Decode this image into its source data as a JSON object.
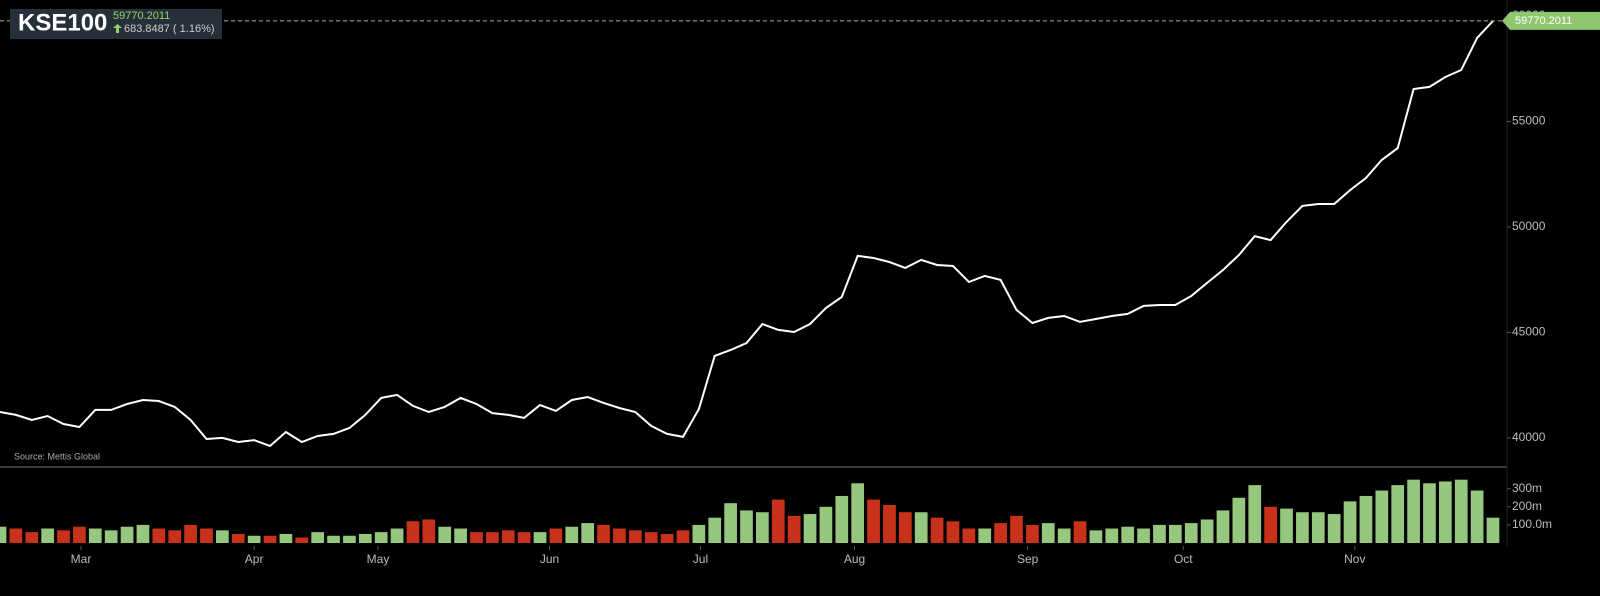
{
  "header": {
    "symbol": "KSE100",
    "last": "59770.2011",
    "change": "683.8487 ( 1.16%)",
    "source": "Source: Mettis Global"
  },
  "chart_data": [
    {
      "type": "line",
      "color": "#ffffff",
      "ylim": [
        38670,
        60760
      ],
      "yticks": [
        40000,
        45000,
        50000,
        55000,
        60000
      ],
      "values": [
        41230,
        41090,
        40850,
        41040,
        40660,
        40520,
        41330,
        41330,
        41610,
        41800,
        41750,
        41470,
        40850,
        39950,
        40000,
        39810,
        39900,
        39620,
        40280,
        39810,
        40090,
        40190,
        40470,
        41090,
        41900,
        42040,
        41520,
        41230,
        41470,
        41900,
        41610,
        41180,
        41090,
        40950,
        41560,
        41280,
        41800,
        41940,
        41660,
        41420,
        41230,
        40570,
        40190,
        40050,
        41370,
        43890,
        44170,
        44500,
        45400,
        45120,
        45020,
        45400,
        46160,
        46680,
        48630,
        48530,
        48340,
        48060,
        48440,
        48200,
        48150,
        47390,
        47680,
        47490,
        46070,
        45450,
        45690,
        45780,
        45500,
        45640,
        45780,
        45880,
        46260,
        46300,
        46300,
        46730,
        47350,
        47960,
        48670,
        49570,
        49380,
        50240,
        51000,
        51090,
        51090,
        51750,
        52320,
        53180,
        53740,
        56540,
        56640,
        57110,
        57440,
        58960,
        59770.2011
      ]
    },
    {
      "type": "bar",
      "up_color": "#96c77f",
      "down_color": "#c8321a",
      "ylim": [
        0,
        420
      ],
      "yticks": [
        {
          "value": 100,
          "label": "100.0m"
        },
        {
          "value": 200,
          "label": "200m"
        },
        {
          "value": 300,
          "label": "300m"
        }
      ],
      "values": [
        90,
        80,
        60,
        80,
        70,
        90,
        80,
        70,
        90,
        100,
        80,
        70,
        100,
        80,
        70,
        50,
        40,
        40,
        50,
        30,
        60,
        40,
        40,
        50,
        60,
        80,
        120,
        130,
        90,
        80,
        60,
        60,
        70,
        60,
        60,
        80,
        90,
        110,
        100,
        80,
        70,
        60,
        50,
        70,
        100,
        140,
        220,
        180,
        170,
        240,
        150,
        160,
        200,
        260,
        330,
        240,
        210,
        170,
        170,
        140,
        120,
        80,
        80,
        110,
        150,
        100,
        110,
        80,
        120,
        70,
        80,
        90,
        80,
        100,
        100,
        110,
        130,
        180,
        250,
        320,
        200,
        190,
        170,
        170,
        160,
        230,
        260,
        290,
        320,
        350,
        330,
        340,
        350,
        290,
        140
      ],
      "rising": [
        true,
        false,
        false,
        true,
        false,
        false,
        true,
        true,
        true,
        true,
        false,
        false,
        false,
        false,
        true,
        false,
        true,
        false,
        true,
        false,
        true,
        true,
        true,
        true,
        true,
        true,
        false,
        false,
        true,
        true,
        false,
        false,
        false,
        false,
        true,
        false,
        true,
        true,
        false,
        false,
        false,
        false,
        false,
        false,
        true,
        true,
        true,
        true,
        true,
        false,
        false,
        true,
        true,
        true,
        true,
        false,
        false,
        false,
        true,
        false,
        false,
        false,
        true,
        false,
        false,
        false,
        true,
        true,
        false,
        true,
        true,
        true,
        true,
        true,
        true,
        true,
        true,
        true,
        true,
        true,
        false,
        true,
        true,
        true,
        true,
        true,
        true,
        true,
        true,
        true,
        true,
        true,
        true,
        true,
        true
      ],
      "xticks": [
        {
          "value": 5.1,
          "label": "Mar"
        },
        {
          "value": 16,
          "label": "Apr"
        },
        {
          "value": 23.8,
          "label": "May"
        },
        {
          "value": 34.6,
          "label": "Jun"
        },
        {
          "value": 44.1,
          "label": "Jul"
        },
        {
          "value": 53.8,
          "label": "Aug"
        },
        {
          "value": 64.7,
          "label": "Sep"
        },
        {
          "value": 74.5,
          "label": "Oct"
        },
        {
          "value": 85.3,
          "label": "Nov"
        }
      ]
    }
  ]
}
